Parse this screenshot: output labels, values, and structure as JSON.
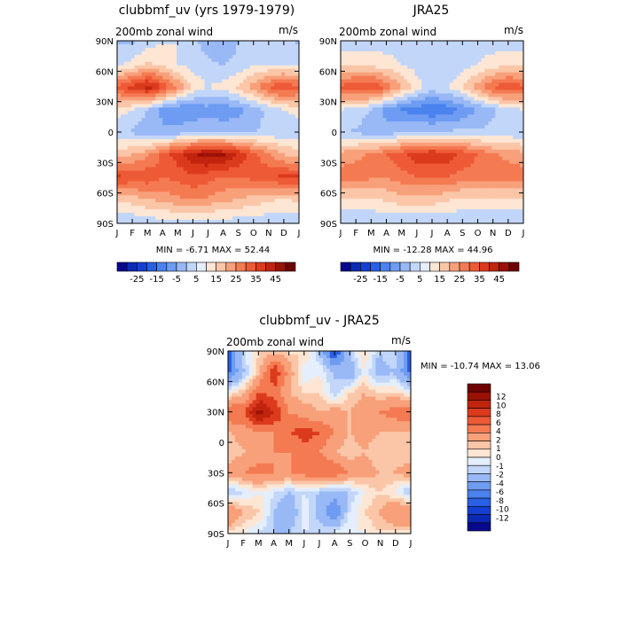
{
  "panels": [
    {
      "title": "clubbmf_uv (yrs 1979-1979)",
      "subtitle": "200mb zonal wind",
      "units": "m/s",
      "stats": "MIN =   -6.71 MAX =   52.44"
    },
    {
      "title": "JRA25",
      "subtitle": "200mb zonal wind",
      "units": "m/s",
      "stats": "MIN = -12.28 MAX =   44.96"
    },
    {
      "title": "clubbmf_uv - JRA25",
      "subtitle": "200mb zonal wind",
      "units": "m/s",
      "stats": "MIN = -10.74 MAX =   13.06"
    }
  ],
  "colorbar_top": {
    "colors": [
      "#08088c",
      "#0a2ab4",
      "#1440d2",
      "#2a5fe6",
      "#4a82ee",
      "#6e9cf2",
      "#98b8f6",
      "#c2d6fa",
      "#e4eefc",
      "#fde6d4",
      "#fbc6a8",
      "#f8a07a",
      "#f47a52",
      "#ee5a36",
      "#dc3a1c",
      "#c0240e",
      "#9a1206",
      "#6e0402"
    ],
    "labels": [
      "-25",
      "-15",
      "-5",
      "5",
      "15",
      "25",
      "35",
      "45"
    ]
  },
  "colorbar_diff": {
    "colors": [
      "#08088c",
      "#0a2ab4",
      "#1440d2",
      "#2a5fe6",
      "#4a82ee",
      "#6e9cf2",
      "#98b8f6",
      "#c2d6fa",
      "#e4eefc",
      "#fde6d4",
      "#fbc6a8",
      "#f8a07a",
      "#f47a52",
      "#ee5a36",
      "#dc3a1c",
      "#c0240e",
      "#9a1206",
      "#6e0402"
    ],
    "labels": [
      "-12",
      "-10",
      "-8",
      "-6",
      "-4",
      "-2",
      "-1",
      "0",
      "1",
      "2",
      "4",
      "6",
      "8",
      "10",
      "12"
    ]
  },
  "chart_data": [
    {
      "type": "heatmap",
      "title": "clubbmf_uv (yrs 1979-1979)",
      "subtitle": "200mb zonal wind",
      "units": "m/s",
      "x": [
        "J",
        "F",
        "M",
        "A",
        "M",
        "J",
        "J",
        "A",
        "S",
        "O",
        "N",
        "D",
        "J"
      ],
      "y": [
        90,
        60,
        30,
        0,
        -30,
        -60,
        -90
      ],
      "ytick_labels": [
        "90N",
        "60N",
        "30N",
        "0",
        "30S",
        "60S",
        "90S"
      ],
      "levels": [
        -25,
        -20,
        -15,
        -10,
        -5,
        0,
        5,
        10,
        15,
        20,
        25,
        30,
        35,
        40,
        45,
        50
      ],
      "min": -6.71,
      "max": 52.44,
      "months": [
        1,
        2,
        3,
        4,
        5,
        6,
        7,
        8,
        9,
        10,
        11,
        12,
        13
      ],
      "values": [
        [
          5,
          5,
          8,
          10,
          10,
          6,
          3,
          2,
          5,
          6,
          5,
          6,
          5
        ],
        [
          9,
          12,
          16,
          14,
          10,
          8,
          6,
          5,
          6,
          9,
          10,
          10,
          9
        ],
        [
          32,
          38,
          43,
          34,
          24,
          14,
          10,
          12,
          16,
          22,
          30,
          35,
          32
        ],
        [
          12,
          10,
          4,
          -2,
          -5,
          -4,
          -2,
          -4,
          -2,
          2,
          6,
          10,
          12
        ],
        [
          6,
          4,
          2,
          1,
          2,
          4,
          4,
          4,
          4,
          5,
          6,
          6,
          6
        ],
        [
          18,
          20,
          24,
          32,
          38,
          44,
          48,
          46,
          40,
          32,
          26,
          20,
          18
        ],
        [
          36,
          34,
          34,
          30,
          32,
          34,
          32,
          30,
          30,
          32,
          34,
          36,
          36
        ],
        [
          16,
          18,
          20,
          22,
          24,
          26,
          24,
          22,
          20,
          18,
          16,
          15,
          16
        ],
        [
          6,
          6,
          8,
          8,
          8,
          8,
          8,
          8,
          8,
          8,
          7,
          6,
          6
        ]
      ]
    },
    {
      "type": "heatmap",
      "title": "JRA25",
      "subtitle": "200mb zonal wind",
      "units": "m/s",
      "x": [
        "J",
        "F",
        "M",
        "A",
        "M",
        "J",
        "J",
        "A",
        "S",
        "O",
        "N",
        "D",
        "J"
      ],
      "y": [
        90,
        60,
        30,
        0,
        -30,
        -60,
        -90
      ],
      "ytick_labels": [
        "90N",
        "60N",
        "30N",
        "0",
        "30S",
        "60S",
        "90S"
      ],
      "levels": [
        -25,
        -20,
        -15,
        -10,
        -5,
        0,
        5,
        10,
        15,
        20,
        25,
        30,
        35,
        40,
        45,
        50
      ],
      "min": -12.28,
      "max": 44.96,
      "months": [
        1,
        2,
        3,
        4,
        5,
        6,
        7,
        8,
        9,
        10,
        11,
        12,
        13
      ],
      "values": [
        [
          8,
          8,
          8,
          8,
          8,
          8,
          8,
          8,
          8,
          8,
          8,
          8,
          8
        ],
        [
          14,
          14,
          13,
          12,
          10,
          8,
          6,
          6,
          8,
          10,
          12,
          14,
          14
        ],
        [
          32,
          34,
          36,
          28,
          20,
          12,
          8,
          10,
          14,
          22,
          30,
          34,
          32
        ],
        [
          10,
          8,
          4,
          -2,
          -6,
          -8,
          -10,
          -8,
          -4,
          0,
          4,
          8,
          10
        ],
        [
          6,
          4,
          2,
          2,
          4,
          6,
          6,
          6,
          6,
          6,
          6,
          6,
          6
        ],
        [
          22,
          24,
          26,
          30,
          34,
          38,
          40,
          38,
          34,
          30,
          26,
          24,
          22
        ],
        [
          28,
          28,
          26,
          26,
          28,
          30,
          30,
          30,
          28,
          28,
          28,
          28,
          28
        ],
        [
          14,
          14,
          14,
          16,
          18,
          18,
          18,
          16,
          14,
          14,
          14,
          14,
          14
        ],
        [
          6,
          6,
          6,
          6,
          6,
          6,
          6,
          6,
          6,
          6,
          6,
          6,
          6
        ]
      ]
    },
    {
      "type": "heatmap",
      "title": "clubbmf_uv - JRA25",
      "subtitle": "200mb zonal wind",
      "units": "m/s",
      "x": [
        "J",
        "F",
        "M",
        "A",
        "M",
        "J",
        "J",
        "A",
        "S",
        "O",
        "N",
        "D",
        "J"
      ],
      "y": [
        90,
        60,
        30,
        0,
        -30,
        -60,
        -90
      ],
      "ytick_labels": [
        "90N",
        "60N",
        "30N",
        "0",
        "30S",
        "60S",
        "90S"
      ],
      "levels": [
        -12,
        -10,
        -8,
        -6,
        -4,
        -2,
        -1,
        0,
        1,
        2,
        4,
        6,
        8,
        10,
        12
      ],
      "min": -10.74,
      "max": 13.06,
      "months": [
        1,
        2,
        3,
        4,
        5,
        6,
        7,
        8,
        9,
        10,
        11,
        12,
        13
      ],
      "values": [
        [
          -6,
          -1,
          1,
          2,
          1,
          1,
          -2,
          -8,
          -2,
          1,
          -2,
          -1,
          -6
        ],
        [
          -6,
          -2,
          2,
          8,
          3,
          -1,
          0,
          -2,
          -4,
          0,
          -3,
          -2,
          -6
        ],
        [
          0,
          2,
          6,
          5,
          2,
          1,
          1,
          -2,
          1,
          2,
          1,
          1,
          0
        ],
        [
          6,
          6,
          11,
          8,
          4,
          3,
          2,
          3,
          2,
          3,
          4,
          5,
          6
        ],
        [
          2,
          3,
          4,
          4,
          6,
          7,
          6,
          4,
          2,
          3,
          2,
          2,
          2
        ],
        [
          1,
          2,
          3,
          4,
          4,
          5,
          4,
          2,
          1,
          2,
          1,
          1,
          1
        ],
        [
          3,
          4,
          5,
          4,
          4,
          5,
          6,
          6,
          4,
          3,
          2,
          2,
          3
        ],
        [
          -2,
          -1,
          0,
          -1,
          -2,
          -1,
          -2,
          -3,
          -2,
          0,
          1,
          0,
          -2
        ],
        [
          4,
          2,
          1,
          -2,
          -4,
          0,
          -3,
          -6,
          -1,
          1,
          2,
          4,
          4
        ],
        [
          1,
          0,
          -1,
          -2,
          -2,
          -1,
          -1,
          -1,
          0,
          0,
          1,
          1,
          1
        ]
      ]
    }
  ]
}
